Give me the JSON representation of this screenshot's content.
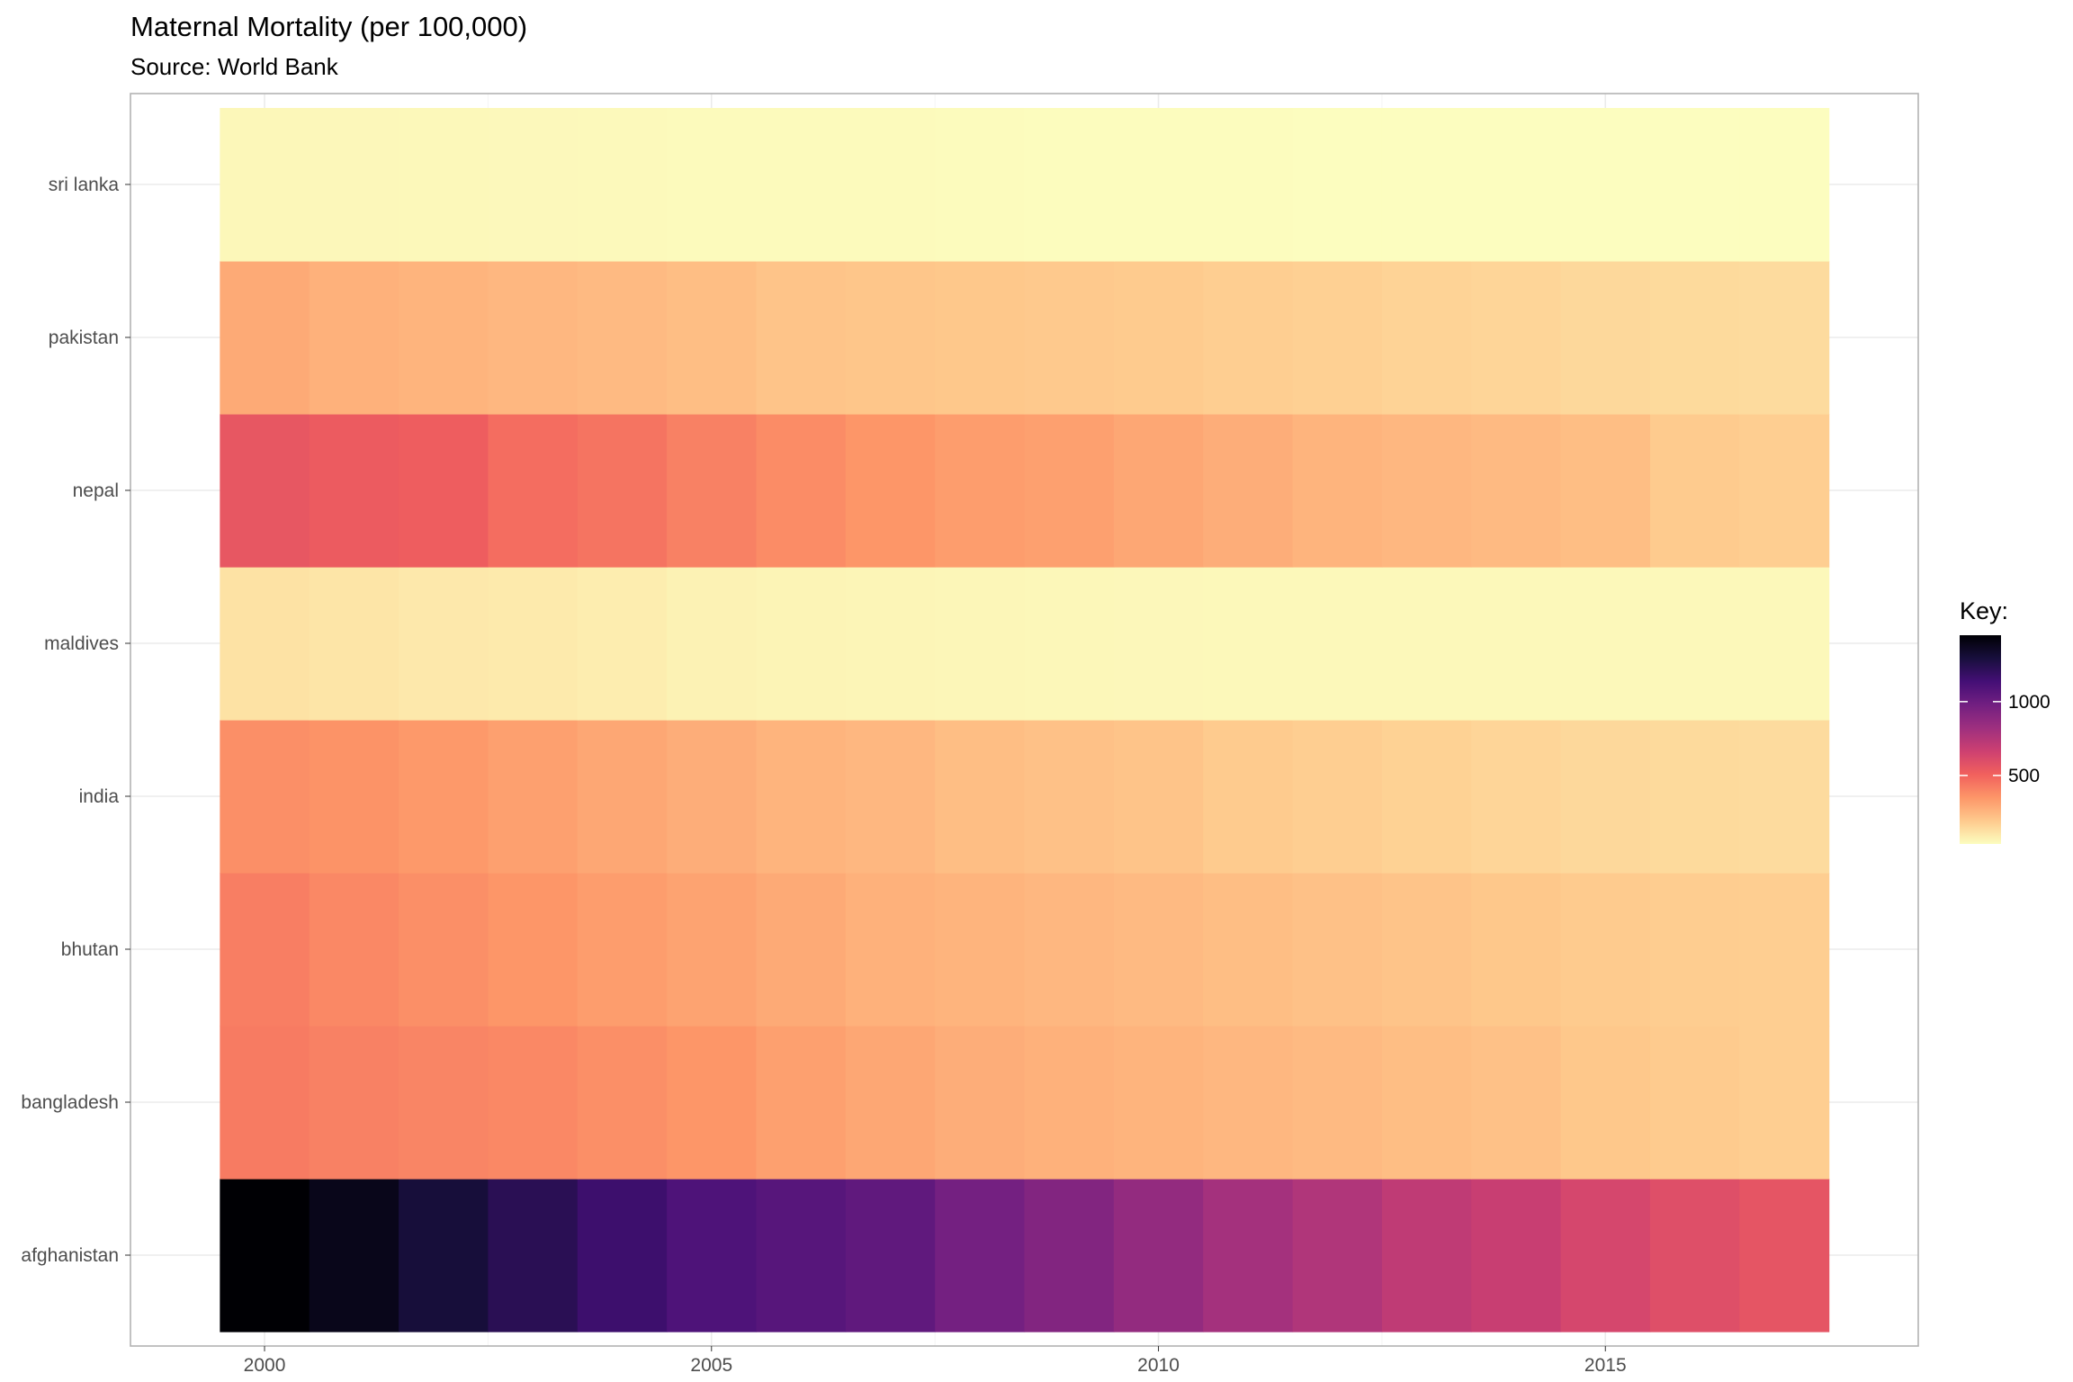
{
  "chart_data": {
    "type": "heatmap",
    "title": "Maternal Mortality (per 100,000)",
    "subtitle": "Source: World Bank",
    "xlabel": "",
    "ylabel": "",
    "x": [
      2000,
      2001,
      2002,
      2003,
      2004,
      2005,
      2006,
      2007,
      2008,
      2009,
      2010,
      2011,
      2012,
      2013,
      2014,
      2015,
      2016,
      2017
    ],
    "x_ticks": [
      2000,
      2005,
      2010,
      2015
    ],
    "xlim": [
      1998.5,
      2018.5
    ],
    "categories": [
      "afghanistan",
      "bangladesh",
      "bhutan",
      "india",
      "maldives",
      "nepal",
      "pakistan",
      "sri lanka"
    ],
    "series": [
      {
        "name": "afghanistan",
        "values": [
          1450,
          1390,
          1300,
          1230,
          1160,
          1100,
          1070,
          1040,
          970,
          920,
          860,
          800,
          760,
          710,
          680,
          630,
          590,
          560
        ]
      },
      {
        "name": "bangladesh",
        "values": [
          430,
          410,
          400,
          390,
          370,
          350,
          320,
          300,
          280,
          270,
          260,
          250,
          240,
          230,
          220,
          200,
          190,
          180
        ]
      },
      {
        "name": "bhutan",
        "values": [
          420,
          390,
          370,
          350,
          330,
          310,
          290,
          270,
          260,
          250,
          240,
          230,
          220,
          210,
          200,
          190,
          185,
          180
        ]
      },
      {
        "name": "india",
        "values": [
          370,
          360,
          340,
          320,
          300,
          280,
          260,
          250,
          230,
          220,
          210,
          190,
          180,
          170,
          160,
          150,
          145,
          140
        ]
      },
      {
        "name": "maldives",
        "values": [
          120,
          110,
          100,
          95,
          85,
          70,
          65,
          60,
          58,
          55,
          53,
          52,
          52,
          52,
          52,
          52,
          52,
          52
        ]
      },
      {
        "name": "nepal",
        "values": [
          550,
          530,
          520,
          470,
          450,
          410,
          380,
          350,
          330,
          320,
          300,
          280,
          260,
          250,
          240,
          230,
          190,
          180
        ]
      },
      {
        "name": "pakistan",
        "values": [
          290,
          270,
          260,
          250,
          240,
          230,
          210,
          205,
          200,
          195,
          190,
          180,
          175,
          165,
          160,
          150,
          145,
          140
        ]
      },
      {
        "name": "sri lanka",
        "values": [
          55,
          53,
          52,
          50,
          48,
          46,
          45,
          44,
          42,
          40,
          39,
          38,
          37,
          37,
          36,
          36,
          36,
          36
        ]
      }
    ],
    "color_scale": {
      "name": "magma",
      "min": 36,
      "max": 1450,
      "stops": [
        "#fcfdbf",
        "#feca8d",
        "#fd9668",
        "#f1605d",
        "#cd4071",
        "#9e2f7f",
        "#721f81",
        "#440f76",
        "#180f3d",
        "#000004"
      ]
    },
    "legend": {
      "title": "Key:",
      "ticks": [
        500,
        1000
      ],
      "position": "right"
    },
    "grid": true
  }
}
